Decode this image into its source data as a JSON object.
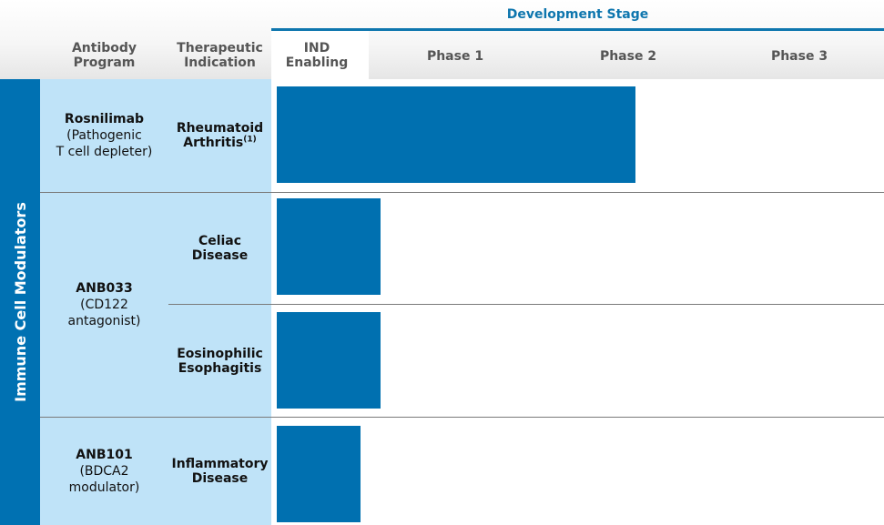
{
  "header": {
    "development_stage": "Development Stage",
    "columns": {
      "program_line1": "Antibody",
      "program_line2": "Program",
      "indication_line1": "Therapeutic",
      "indication_line2": "Indication",
      "ind_line1": "IND",
      "ind_line2": "Enabling",
      "phase1": "Phase 1",
      "phase2": "Phase 2",
      "phase3": "Phase 3"
    }
  },
  "category_label": "Immune Cell Modulators",
  "programs": [
    {
      "name": "Rosnilimab",
      "desc_line1": "(Pathogenic",
      "desc_line2": "T cell depleter)"
    },
    {
      "name": "ANB033",
      "desc_line1": "(CD122",
      "desc_line2": "antagonist)"
    },
    {
      "name": "ANB101",
      "desc_line1": "(BDCA2",
      "desc_line2": "modulator)"
    }
  ],
  "indications": [
    {
      "line1": "Rheumatoid",
      "line2": "Arthritis",
      "sup": "(1)"
    },
    {
      "line1": "Celiac",
      "line2": "Disease",
      "sup": ""
    },
    {
      "line1": "Eosinophilic",
      "line2": "Esophagitis",
      "sup": ""
    },
    {
      "line1": "Inflammatory",
      "line2": "Disease",
      "sup": ""
    }
  ],
  "colors": {
    "accent": "#0e76ae",
    "bar": "#0070b0",
    "side_bar": "#0071b2",
    "panel": "#bfe3f8"
  },
  "chart_data": {
    "type": "bar",
    "orientation": "horizontal",
    "stages": [
      "IND Enabling",
      "Phase 1",
      "Phase 2",
      "Phase 3"
    ],
    "categories": [
      "Rosnilimab — Rheumatoid Arthritis",
      "ANB033 — Celiac Disease",
      "ANB033 — Eosinophilic Esophagitis",
      "ANB101 — Inflammatory Disease"
    ],
    "values": [
      2.54,
      1.07,
      1.07,
      0.92
    ],
    "xlim": [
      0,
      4
    ]
  }
}
